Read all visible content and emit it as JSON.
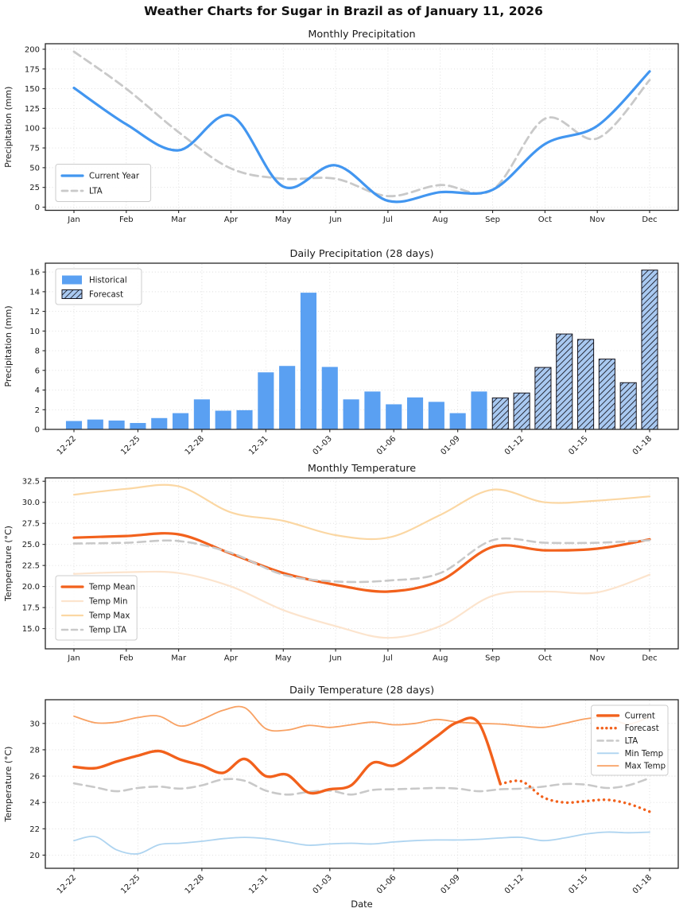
{
  "figure_title": "Weather Charts for Sugar in Brazil as of January 11, 2026",
  "colors": {
    "current_precip_line": "#4296f0",
    "lta_line": "#c9c9c9",
    "historical_bar": "#5aa0f2",
    "forecast_bar_fill": "#a9c9f1",
    "forecast_bar_hatch": "#15151f",
    "temp_mean": "#f2611c",
    "temp_min_monthly": "#fce4cd",
    "temp_max_monthly": "#fbd7a3",
    "daily_min_temp": "#aed4f0",
    "daily_max_temp": "#f8a163",
    "grid": "#dcdcdc",
    "spine": "#262626"
  },
  "chart_data": [
    {
      "id": "monthly_precip",
      "type": "line",
      "title": "Monthly Precipitation",
      "ylabel": "Precipitation (mm)",
      "xlabel": "",
      "categories": [
        "Jan",
        "Feb",
        "Mar",
        "Apr",
        "May",
        "Jun",
        "Jul",
        "Aug",
        "Sep",
        "Oct",
        "Nov",
        "Dec"
      ],
      "ylim": [
        -4,
        207
      ],
      "yticks": [
        0,
        25,
        50,
        75,
        100,
        125,
        150,
        175,
        200
      ],
      "ytick_decimals": 0,
      "xtick_step": 1,
      "rotate_xticks": false,
      "grid": true,
      "legend_position": "lower-left",
      "series": [
        {
          "name": "Current Year",
          "color": "#4296f0",
          "style": "solid",
          "width": 3.2,
          "start_index": 0,
          "values": [
            151,
            105,
            72,
            116,
            26,
            53,
            8,
            19,
            22,
            80,
            103,
            172
          ]
        },
        {
          "name": "LTA",
          "color": "#c9c9c9",
          "style": "dashed",
          "width": 2.8,
          "start_index": 0,
          "values": [
            197,
            150,
            95,
            49,
            36,
            36,
            14,
            28,
            22,
            112,
            87,
            161
          ]
        }
      ]
    },
    {
      "id": "daily_precip",
      "type": "bar",
      "title": "Daily Precipitation (28 days)",
      "ylabel": "Precipitation (mm)",
      "xlabel": "",
      "categories": [
        "12-22",
        "12-23",
        "12-24",
        "12-25",
        "12-26",
        "12-27",
        "12-28",
        "12-29",
        "12-30",
        "12-31",
        "01-01",
        "01-02",
        "01-03",
        "01-04",
        "01-05",
        "01-06",
        "01-07",
        "01-08",
        "01-09",
        "01-10",
        "01-11",
        "01-12",
        "01-13",
        "01-14",
        "01-15",
        "01-16",
        "01-17",
        "01-18"
      ],
      "ylim": [
        0,
        16.9
      ],
      "yticks": [
        0,
        2,
        4,
        6,
        8,
        10,
        12,
        14,
        16
      ],
      "ytick_decimals": 0,
      "xtick_step": 3,
      "rotate_xticks": true,
      "grid": true,
      "legend_position": "upper-left",
      "series": [
        {
          "name": "Historical",
          "color": "#5aa0f2",
          "start_index": 0,
          "values": [
            0.85,
            1.0,
            0.9,
            0.65,
            1.15,
            1.65,
            3.05,
            1.9,
            1.95,
            5.8,
            6.45,
            13.9,
            6.35,
            3.05,
            3.85,
            2.55,
            3.25,
            2.8,
            1.65,
            3.85
          ]
        },
        {
          "name": "Forecast",
          "color": "#a9c9f1",
          "hatch": true,
          "start_index": 20,
          "values": [
            3.2,
            3.7,
            6.3,
            9.7,
            9.15,
            7.15,
            4.75,
            16.2
          ]
        }
      ]
    },
    {
      "id": "monthly_temp",
      "type": "line",
      "title": "Monthly Temperature",
      "ylabel": "Temperature (°C)",
      "xlabel": "",
      "categories": [
        "Jan",
        "Feb",
        "Mar",
        "Apr",
        "May",
        "Jun",
        "Jul",
        "Aug",
        "Sep",
        "Oct",
        "Nov",
        "Dec"
      ],
      "ylim": [
        12.6,
        32.9
      ],
      "yticks": [
        15.0,
        17.5,
        20.0,
        22.5,
        25.0,
        27.5,
        30.0,
        32.5
      ],
      "ytick_decimals": 1,
      "xtick_step": 1,
      "rotate_xticks": false,
      "grid": true,
      "legend_position": "lower-left",
      "series": [
        {
          "name": "Temp Mean",
          "color": "#f2611c",
          "style": "solid",
          "width": 3.2,
          "start_index": 0,
          "values": [
            25.8,
            26.0,
            26.2,
            23.9,
            21.6,
            20.2,
            19.4,
            20.7,
            24.7,
            24.3,
            24.5,
            25.6
          ]
        },
        {
          "name": "Temp Min",
          "color": "#fce4cd",
          "style": "solid",
          "width": 2.2,
          "start_index": 0,
          "values": [
            21.5,
            21.7,
            21.6,
            20.0,
            17.2,
            15.3,
            13.9,
            15.3,
            18.9,
            19.4,
            19.3,
            21.4
          ]
        },
        {
          "name": "Temp Max",
          "color": "#fbd7a3",
          "style": "solid",
          "width": 2.2,
          "start_index": 0,
          "values": [
            30.9,
            31.6,
            31.9,
            28.8,
            27.8,
            26.1,
            25.8,
            28.5,
            31.5,
            30.0,
            30.2,
            30.7
          ]
        },
        {
          "name": "Temp LTA",
          "color": "#c9c9c9",
          "style": "dashed",
          "width": 2.6,
          "start_index": 0,
          "values": [
            25.1,
            25.2,
            25.4,
            24.0,
            21.4,
            20.6,
            20.7,
            21.6,
            25.5,
            25.2,
            25.2,
            25.5
          ]
        }
      ]
    },
    {
      "id": "daily_temp",
      "type": "line",
      "title": "Daily Temperature (28 days)",
      "ylabel": "Temperature (°C)",
      "xlabel": "Date",
      "categories": [
        "12-22",
        "12-23",
        "12-24",
        "12-25",
        "12-26",
        "12-27",
        "12-28",
        "12-29",
        "12-30",
        "12-31",
        "01-01",
        "01-02",
        "01-03",
        "01-04",
        "01-05",
        "01-06",
        "01-07",
        "01-08",
        "01-09",
        "01-10",
        "01-11",
        "01-12",
        "01-13",
        "01-14",
        "01-15",
        "01-16",
        "01-17",
        "01-18"
      ],
      "ylim": [
        19.0,
        31.8
      ],
      "yticks": [
        20,
        22,
        24,
        26,
        28,
        30
      ],
      "ytick_decimals": 0,
      "xtick_step": 3,
      "rotate_xticks": true,
      "grid": true,
      "legend_position": "upper-right",
      "series": [
        {
          "name": "Current",
          "color": "#f2611c",
          "style": "solid",
          "width": 3.4,
          "start_index": 0,
          "values": [
            26.7,
            26.6,
            27.1,
            27.55,
            27.9,
            27.25,
            26.8,
            26.25,
            27.3,
            26.0,
            26.1,
            24.75,
            25.0,
            25.3,
            27.0,
            26.8,
            27.8,
            29.0,
            30.1,
            30.0,
            25.4
          ]
        },
        {
          "name": "Forecast",
          "color": "#f2611c",
          "style": "dotted",
          "width": 3.4,
          "start_index": 20,
          "values": [
            25.4,
            25.6,
            24.4,
            24.0,
            24.1,
            24.2,
            23.9,
            23.3
          ]
        },
        {
          "name": "LTA",
          "color": "#c9c9c9",
          "style": "dashed",
          "width": 2.6,
          "start_index": 0,
          "values": [
            25.45,
            25.15,
            24.85,
            25.1,
            25.2,
            25.05,
            25.3,
            25.75,
            25.65,
            24.9,
            24.6,
            24.8,
            24.9,
            24.6,
            24.95,
            25.0,
            25.05,
            25.1,
            25.05,
            24.85,
            25.0,
            25.05,
            25.2,
            25.4,
            25.35,
            25.1,
            25.3,
            25.85
          ]
        },
        {
          "name": "Min Temp",
          "color": "#aed4f0",
          "style": "solid",
          "width": 1.8,
          "start_index": 0,
          "values": [
            21.1,
            21.4,
            20.4,
            20.1,
            20.8,
            20.9,
            21.05,
            21.25,
            21.35,
            21.25,
            21.0,
            20.75,
            20.85,
            20.9,
            20.85,
            21.0,
            21.1,
            21.15,
            21.15,
            21.2,
            21.3,
            21.35,
            21.1,
            21.3,
            21.6,
            21.75,
            21.7,
            21.75
          ]
        },
        {
          "name": "Max Temp",
          "color": "#f8a163",
          "style": "solid",
          "width": 1.8,
          "start_index": 0,
          "values": [
            30.55,
            30.05,
            30.1,
            30.45,
            30.55,
            29.8,
            30.3,
            31.0,
            31.2,
            29.6,
            29.5,
            29.85,
            29.7,
            29.9,
            30.1,
            29.9,
            30.0,
            30.3,
            30.1,
            30.0,
            29.95,
            29.8,
            29.7,
            30.0,
            30.35,
            30.45,
            29.95,
            30.5
          ]
        }
      ]
    }
  ]
}
